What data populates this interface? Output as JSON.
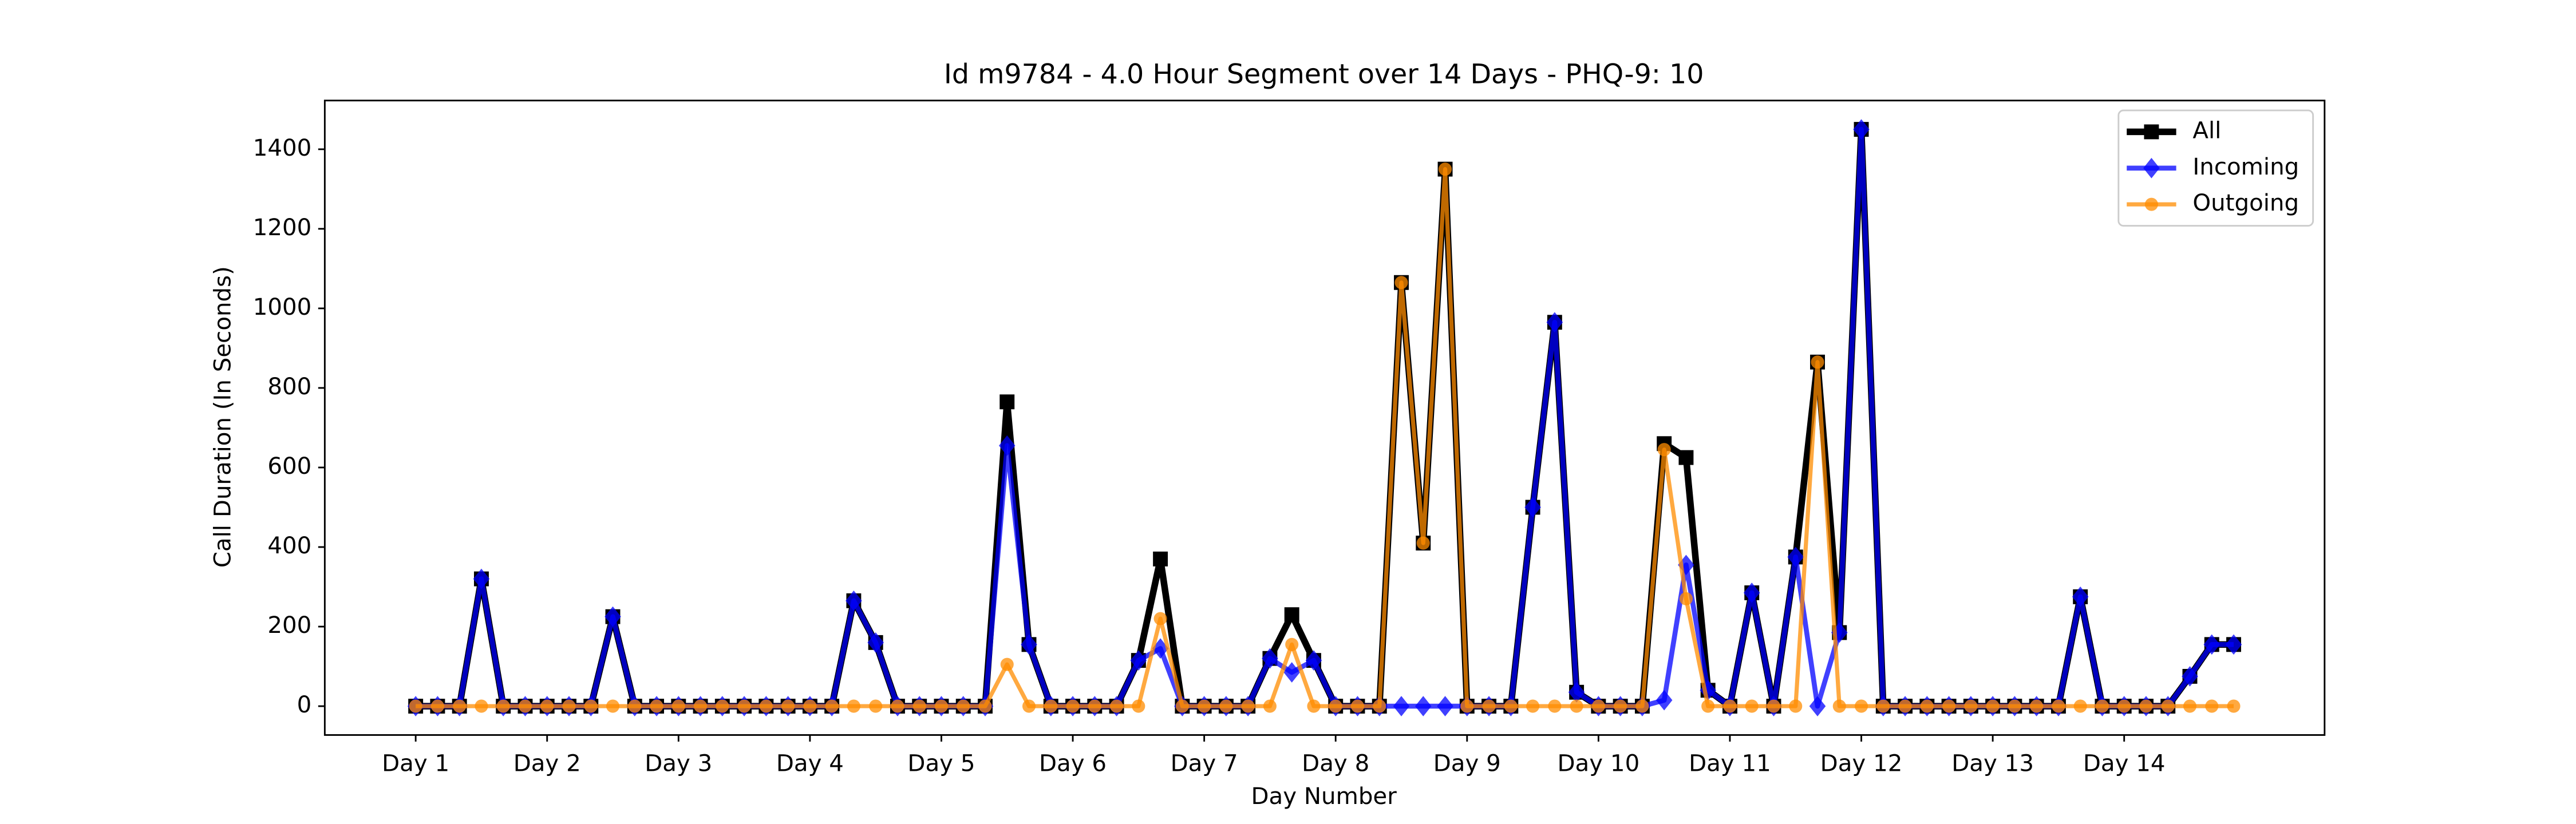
{
  "chart_data": {
    "type": "line",
    "title": "Id m9784 - 4.0 Hour Segment over 14 Days - PHQ-9: 10",
    "xlabel": "Day Number",
    "ylabel": "Call Duration (In Seconds)",
    "x": [
      0,
      1,
      2,
      3,
      4,
      5,
      6,
      7,
      8,
      9,
      10,
      11,
      12,
      13,
      14,
      15,
      16,
      17,
      18,
      19,
      20,
      21,
      22,
      23,
      24,
      25,
      26,
      27,
      28,
      29,
      30,
      31,
      32,
      33,
      34,
      35,
      36,
      37,
      38,
      39,
      40,
      41,
      42,
      43,
      44,
      45,
      46,
      47,
      48,
      49,
      50,
      51,
      52,
      53,
      54,
      55,
      56,
      57,
      58,
      59,
      60,
      61,
      62,
      63,
      64,
      65,
      66,
      67,
      68,
      69,
      70,
      71,
      72,
      73,
      74,
      75,
      76,
      77,
      78,
      79,
      80,
      81,
      82,
      83
    ],
    "series": [
      {
        "name": "All",
        "color": "#000000",
        "marker": "square",
        "values": [
          0,
          0,
          0,
          320,
          0,
          0,
          0,
          0,
          0,
          225,
          0,
          0,
          0,
          0,
          0,
          0,
          0,
          0,
          0,
          0,
          265,
          160,
          0,
          0,
          0,
          0,
          0,
          765,
          155,
          0,
          0,
          0,
          0,
          115,
          370,
          0,
          0,
          0,
          0,
          120,
          230,
          115,
          0,
          0,
          0,
          1065,
          410,
          1350,
          0,
          0,
          0,
          500,
          965,
          35,
          0,
          0,
          0,
          660,
          625,
          40,
          0,
          285,
          0,
          375,
          865,
          185,
          1450,
          0,
          0,
          0,
          0,
          0,
          0,
          0,
          0,
          0,
          275,
          0,
          0,
          0,
          0,
          75,
          155,
          155
        ]
      },
      {
        "name": "Incoming",
        "color": "#0000ff",
        "marker": "diamond",
        "values": [
          0,
          0,
          0,
          320,
          0,
          0,
          0,
          0,
          0,
          225,
          0,
          0,
          0,
          0,
          0,
          0,
          0,
          0,
          0,
          0,
          265,
          160,
          0,
          0,
          0,
          0,
          0,
          655,
          155,
          0,
          0,
          0,
          0,
          115,
          145,
          0,
          0,
          0,
          0,
          120,
          85,
          115,
          0,
          0,
          0,
          0,
          0,
          0,
          0,
          0,
          0,
          500,
          965,
          35,
          0,
          0,
          0,
          15,
          355,
          40,
          0,
          285,
          0,
          375,
          0,
          185,
          1450,
          0,
          0,
          0,
          0,
          0,
          0,
          0,
          0,
          0,
          275,
          0,
          0,
          0,
          0,
          75,
          155,
          155
        ]
      },
      {
        "name": "Outgoing",
        "color": "#ff8c00",
        "marker": "circle",
        "values": [
          0,
          0,
          0,
          0,
          0,
          0,
          0,
          0,
          0,
          0,
          0,
          0,
          0,
          0,
          0,
          0,
          0,
          0,
          0,
          0,
          0,
          0,
          0,
          0,
          0,
          0,
          0,
          105,
          0,
          0,
          0,
          0,
          0,
          0,
          220,
          0,
          0,
          0,
          0,
          0,
          155,
          0,
          0,
          0,
          0,
          1065,
          410,
          1350,
          0,
          0,
          0,
          0,
          0,
          0,
          0,
          0,
          0,
          645,
          270,
          0,
          0,
          0,
          0,
          0,
          865,
          0,
          0,
          0,
          0,
          0,
          0,
          0,
          0,
          0,
          0,
          0,
          0,
          0,
          0,
          0,
          0,
          0,
          0,
          0
        ]
      }
    ],
    "xlim": [
      -4.15,
      87.15
    ],
    "ylim": [
      -72.5,
      1522.5
    ],
    "xticks": [
      {
        "value": 0,
        "label": "Day 1"
      },
      {
        "value": 6,
        "label": "Day 2"
      },
      {
        "value": 12,
        "label": "Day 3"
      },
      {
        "value": 18,
        "label": "Day 4"
      },
      {
        "value": 24,
        "label": "Day 5"
      },
      {
        "value": 30,
        "label": "Day 6"
      },
      {
        "value": 36,
        "label": "Day 7"
      },
      {
        "value": 42,
        "label": "Day 8"
      },
      {
        "value": 48,
        "label": "Day 9"
      },
      {
        "value": 54,
        "label": "Day 10"
      },
      {
        "value": 60,
        "label": "Day 11"
      },
      {
        "value": 66,
        "label": "Day 12"
      },
      {
        "value": 72,
        "label": "Day 13"
      },
      {
        "value": 78,
        "label": "Day 14"
      }
    ],
    "yticks": [
      0,
      200,
      400,
      600,
      800,
      1000,
      1200,
      1400
    ],
    "legend": "upper right",
    "grid": false
  }
}
